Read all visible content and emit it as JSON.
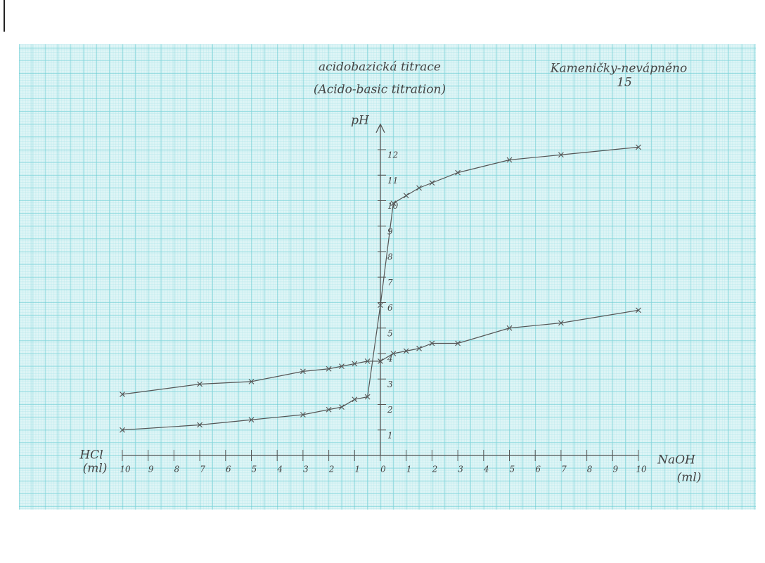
{
  "chart_data": {
    "type": "line",
    "title": "acidobazická titrace",
    "subtitle": "(Acido-basic titration)",
    "annotations": [
      "Kameničky-nevápněno",
      "15"
    ],
    "ylabel": "pH",
    "xlabel_left": "HCl",
    "xlabel_left_unit": "(ml)",
    "xlabel_right": "NaOH",
    "xlabel_right_unit": "(ml)",
    "x": [
      -10,
      -7,
      -5,
      -3,
      -2,
      -1.5,
      -1,
      -0.5,
      0,
      0.5,
      1,
      1.5,
      2,
      3,
      5,
      7,
      10
    ],
    "series": [
      {
        "color": "#555555",
        "values": [
          2.4,
          2.8,
          2.9,
          3.3,
          3.4,
          3.5,
          3.6,
          3.7,
          3.7,
          4.0,
          4.1,
          4.2,
          4.4,
          4.4,
          5.0,
          5.2,
          5.7
        ]
      },
      {
        "color": "#555555",
        "values": [
          1.0,
          1.2,
          1.4,
          1.6,
          1.8,
          1.9,
          2.2,
          2.3,
          5.9,
          9.9,
          10.2,
          10.5,
          10.7,
          11.1,
          11.6,
          11.8,
          12.1
        ]
      }
    ],
    "xlim": [
      -10,
      10
    ],
    "ylim": [
      0,
      13
    ],
    "xticks": [
      {
        "value": -10,
        "label": "10"
      },
      {
        "value": -9,
        "label": "9"
      },
      {
        "value": -8,
        "label": "8"
      },
      {
        "value": -7,
        "label": "7"
      },
      {
        "value": -6,
        "label": "6"
      },
      {
        "value": -5,
        "label": "5"
      },
      {
        "value": -4,
        "label": "4"
      },
      {
        "value": -3,
        "label": "3"
      },
      {
        "value": -2,
        "label": "2"
      },
      {
        "value": -1,
        "label": "1"
      },
      0,
      1,
      2,
      3,
      4,
      5,
      6,
      7,
      8,
      9,
      10
    ],
    "yticks": [
      1,
      2,
      3,
      4,
      5,
      6,
      7,
      8,
      9,
      10,
      11,
      12
    ]
  }
}
